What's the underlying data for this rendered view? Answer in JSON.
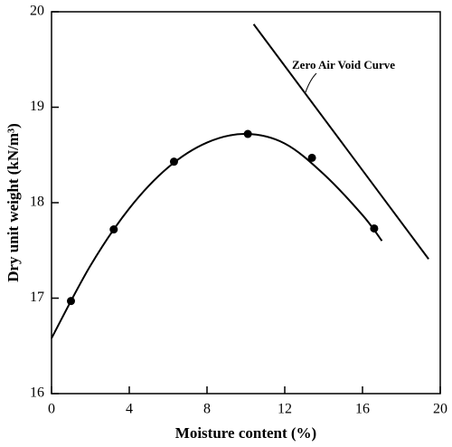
{
  "chart_data": {
    "type": "line",
    "x_label": "Moisture content (%)",
    "y_label": "Dry unit weight (kN/m³)",
    "annotation": "Zero Air Void Curve",
    "xlim": [
      0,
      20
    ],
    "xticks": [
      0,
      4,
      8,
      12,
      16,
      20
    ],
    "ylim": [
      16,
      20
    ],
    "yticks": [
      16,
      17,
      18,
      19,
      20
    ],
    "series": [
      {
        "color": "#000000",
        "style": "markers",
        "x": [
          1,
          3.2,
          6.3,
          10.1,
          13.4,
          16.6
        ],
        "values": [
          16.97,
          17.72,
          18.43,
          18.72,
          18.47,
          17.73
        ]
      },
      {
        "color": "#000000",
        "style": "curve",
        "x": [
          0,
          2,
          4,
          6,
          8,
          10,
          12,
          14,
          16,
          17
        ],
        "values": [
          16.58,
          17.34,
          17.94,
          18.37,
          18.63,
          18.72,
          18.62,
          18.3,
          17.87,
          17.6
        ]
      },
      {
        "color": "#000000",
        "style": "line",
        "x": [
          10.4,
          19.4
        ],
        "values": [
          19.87,
          17.41
        ]
      }
    ]
  }
}
